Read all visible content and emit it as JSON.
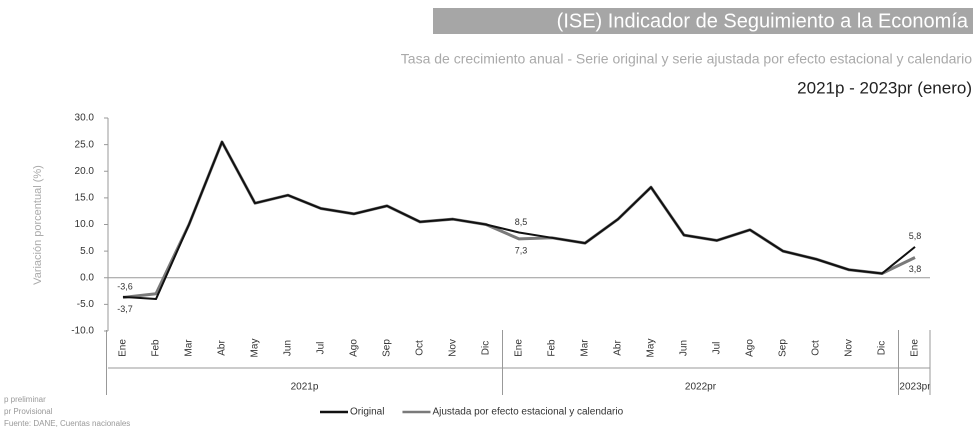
{
  "chart_data": {
    "type": "line",
    "title": "(ISE) Indicador de Seguimiento a la Economía",
    "subtitle": "Tasa de crecimiento anual - Serie original y serie ajustada por efecto estacional y calendario",
    "date_range": "2021p - 2023pr (enero)",
    "y_label": "Variación porcentual (%)",
    "categories": [
      "Ene",
      "Feb",
      "Mar",
      "Abr",
      "May",
      "Jun",
      "Jul",
      "Ago",
      "Sep",
      "Oct",
      "Nov",
      "Dic",
      "Ene",
      "Feb",
      "Mar",
      "Abr",
      "May",
      "Jun",
      "Jul",
      "Ago",
      "Sep",
      "Oct",
      "Nov",
      "Dic",
      "Ene"
    ],
    "year_labels": [
      "2021p",
      "2022pr",
      "2023pr"
    ],
    "series": [
      {
        "name": "Original",
        "color": "#111111",
        "values": [
          -3.6,
          -4.0,
          10.0,
          25.5,
          14.0,
          15.5,
          13.0,
          12.0,
          13.5,
          10.5,
          11.0,
          10.0,
          8.5,
          7.5,
          6.5,
          11.0,
          17.0,
          8.0,
          7.0,
          9.0,
          5.0,
          3.5,
          1.5,
          0.8,
          5.8
        ],
        "value_labels": [
          "-3,6",
          null,
          null,
          null,
          null,
          null,
          null,
          null,
          null,
          null,
          null,
          null,
          "8,5",
          null,
          null,
          null,
          null,
          null,
          null,
          null,
          null,
          null,
          null,
          null,
          "5,8"
        ]
      },
      {
        "name": "Ajustada por efecto estacional y calendario",
        "color": "#7a7a7a",
        "values": [
          -3.7,
          -3.0,
          10.0,
          25.5,
          14.0,
          15.5,
          13.0,
          12.0,
          13.5,
          10.5,
          11.0,
          10.0,
          7.3,
          7.5,
          6.5,
          11.0,
          17.0,
          8.0,
          7.0,
          9.0,
          5.0,
          3.5,
          1.5,
          0.8,
          3.8
        ],
        "value_labels": [
          "-3,7",
          null,
          null,
          null,
          null,
          null,
          null,
          null,
          null,
          null,
          null,
          null,
          "7,3",
          null,
          null,
          null,
          null,
          null,
          null,
          null,
          null,
          null,
          null,
          null,
          "3,8"
        ]
      }
    ],
    "ylim": [
      -10,
      30
    ],
    "yticks": [
      {
        "value": -10,
        "label": "-10.0"
      },
      {
        "value": -5,
        "label": "-5.0"
      },
      {
        "value": 0,
        "label": "0.0"
      },
      {
        "value": 5,
        "label": "5.0"
      },
      {
        "value": 10,
        "label": "10.0"
      },
      {
        "value": 15,
        "label": "15.0"
      },
      {
        "value": 20,
        "label": "20.0"
      },
      {
        "value": 25,
        "label": "25.0"
      },
      {
        "value": 30,
        "label": "30.0"
      }
    ],
    "footnotes": [
      "p preliminar",
      "pr Provisional",
      "Fuente: DANE, Cuentas nacionales"
    ]
  }
}
